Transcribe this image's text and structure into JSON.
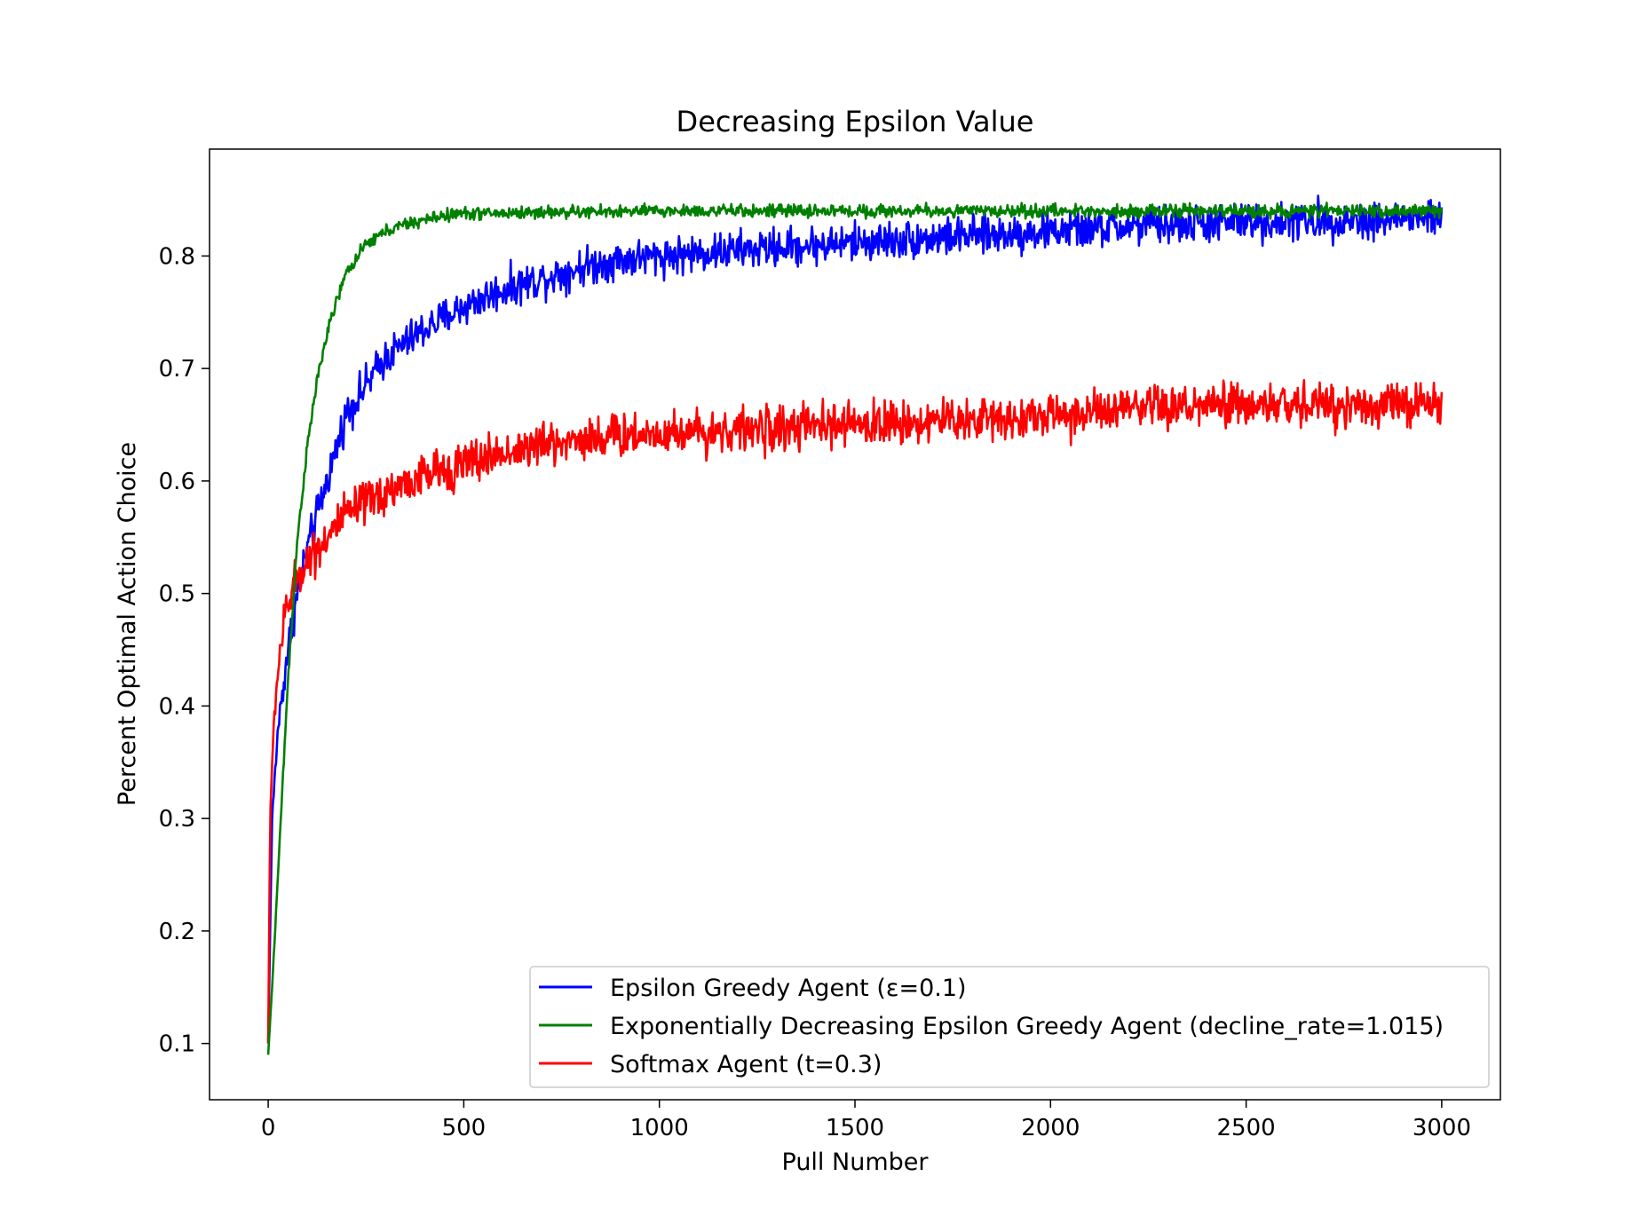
{
  "chart_data": {
    "type": "line",
    "title": "Decreasing Epsilon Value",
    "xlabel": "Pull Number",
    "ylabel": "Percent Optimal Action Choice",
    "xlim": [
      -150,
      3150
    ],
    "ylim": [
      0.05,
      0.895
    ],
    "x_ticks": [
      0,
      500,
      1000,
      1500,
      2000,
      2500,
      3000
    ],
    "x_tick_labels": [
      "0",
      "500",
      "1000",
      "1500",
      "2000",
      "2500",
      "3000"
    ],
    "y_ticks": [
      0.1,
      0.2,
      0.3,
      0.4,
      0.5,
      0.6,
      0.7,
      0.8
    ],
    "y_tick_labels": [
      "0.1",
      "0.2",
      "0.3",
      "0.4",
      "0.5",
      "0.6",
      "0.7",
      "0.8"
    ],
    "grid": false,
    "legend_position": "lower-right",
    "series": [
      {
        "name": "Epsilon Greedy Agent (ε=0.1)",
        "color": "#0000ff",
        "noise": 0.012,
        "x": [
          0,
          10,
          25,
          50,
          75,
          100,
          150,
          200,
          300,
          400,
          500,
          600,
          700,
          800,
          900,
          1000,
          1200,
          1500,
          1800,
          2000,
          2200,
          2500,
          2800,
          3000
        ],
        "y": [
          0.1,
          0.3,
          0.38,
          0.45,
          0.5,
          0.54,
          0.6,
          0.66,
          0.71,
          0.735,
          0.755,
          0.77,
          0.78,
          0.79,
          0.797,
          0.8,
          0.805,
          0.812,
          0.818,
          0.822,
          0.826,
          0.83,
          0.832,
          0.834
        ]
      },
      {
        "name": "Exponentially Decreasing Epsilon Greedy Agent (decline_rate=1.015)",
        "color": "#008000",
        "noise": 0.004,
        "x": [
          0,
          10,
          25,
          50,
          75,
          100,
          125,
          150,
          175,
          200,
          250,
          300,
          350,
          400,
          450,
          500,
          600,
          700,
          800,
          1000,
          1500,
          2000,
          2500,
          3000
        ],
        "y": [
          0.09,
          0.15,
          0.25,
          0.42,
          0.55,
          0.63,
          0.69,
          0.73,
          0.76,
          0.785,
          0.81,
          0.822,
          0.828,
          0.832,
          0.836,
          0.838,
          0.838,
          0.839,
          0.839,
          0.84,
          0.84,
          0.84,
          0.84,
          0.84
        ]
      },
      {
        "name": "Softmax Agent (t=0.3)",
        "color": "#ff0000",
        "noise": 0.014,
        "x": [
          0,
          5,
          15,
          30,
          50,
          75,
          100,
          150,
          200,
          300,
          400,
          500,
          600,
          700,
          800,
          1000,
          1200,
          1500,
          1800,
          2000,
          2300,
          2500,
          2800,
          3000
        ],
        "y": [
          0.1,
          0.3,
          0.39,
          0.45,
          0.49,
          0.515,
          0.53,
          0.55,
          0.57,
          0.59,
          0.605,
          0.615,
          0.625,
          0.632,
          0.638,
          0.643,
          0.645,
          0.65,
          0.655,
          0.658,
          0.665,
          0.667,
          0.668,
          0.668
        ]
      }
    ]
  }
}
